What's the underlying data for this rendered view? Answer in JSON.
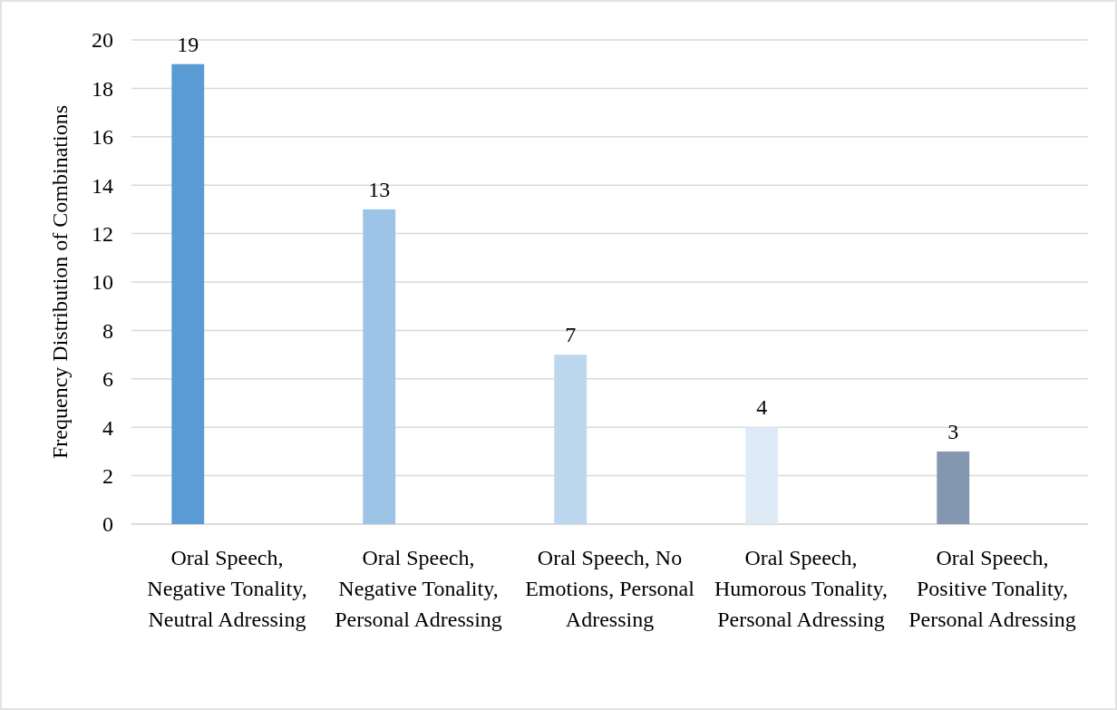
{
  "chart_data": {
    "type": "bar",
    "ylabel": "Frequency Distribution of Combinations",
    "categories": [
      "Oral Speech, Negative Tonality, Neutral Adressing",
      "Oral Speech, Negative Tonality, Personal Adressing",
      "Oral Speech, No Emotions, Personal Adressing",
      "Oral Speech, Humorous Tonality, Personal Adressing",
      "Oral Speech, Positive Tonality, Personal Adressing"
    ],
    "values": [
      19,
      13,
      7,
      4,
      3
    ],
    "colors": [
      "#5b9bd5",
      "#9dc3e6",
      "#bdd7ee",
      "#deebf7",
      "#8497b0"
    ],
    "ylim": [
      0,
      20
    ],
    "yticks": [
      0,
      2,
      4,
      6,
      8,
      10,
      12,
      14,
      16,
      18,
      20
    ],
    "grid": "y",
    "data_labels": true
  }
}
